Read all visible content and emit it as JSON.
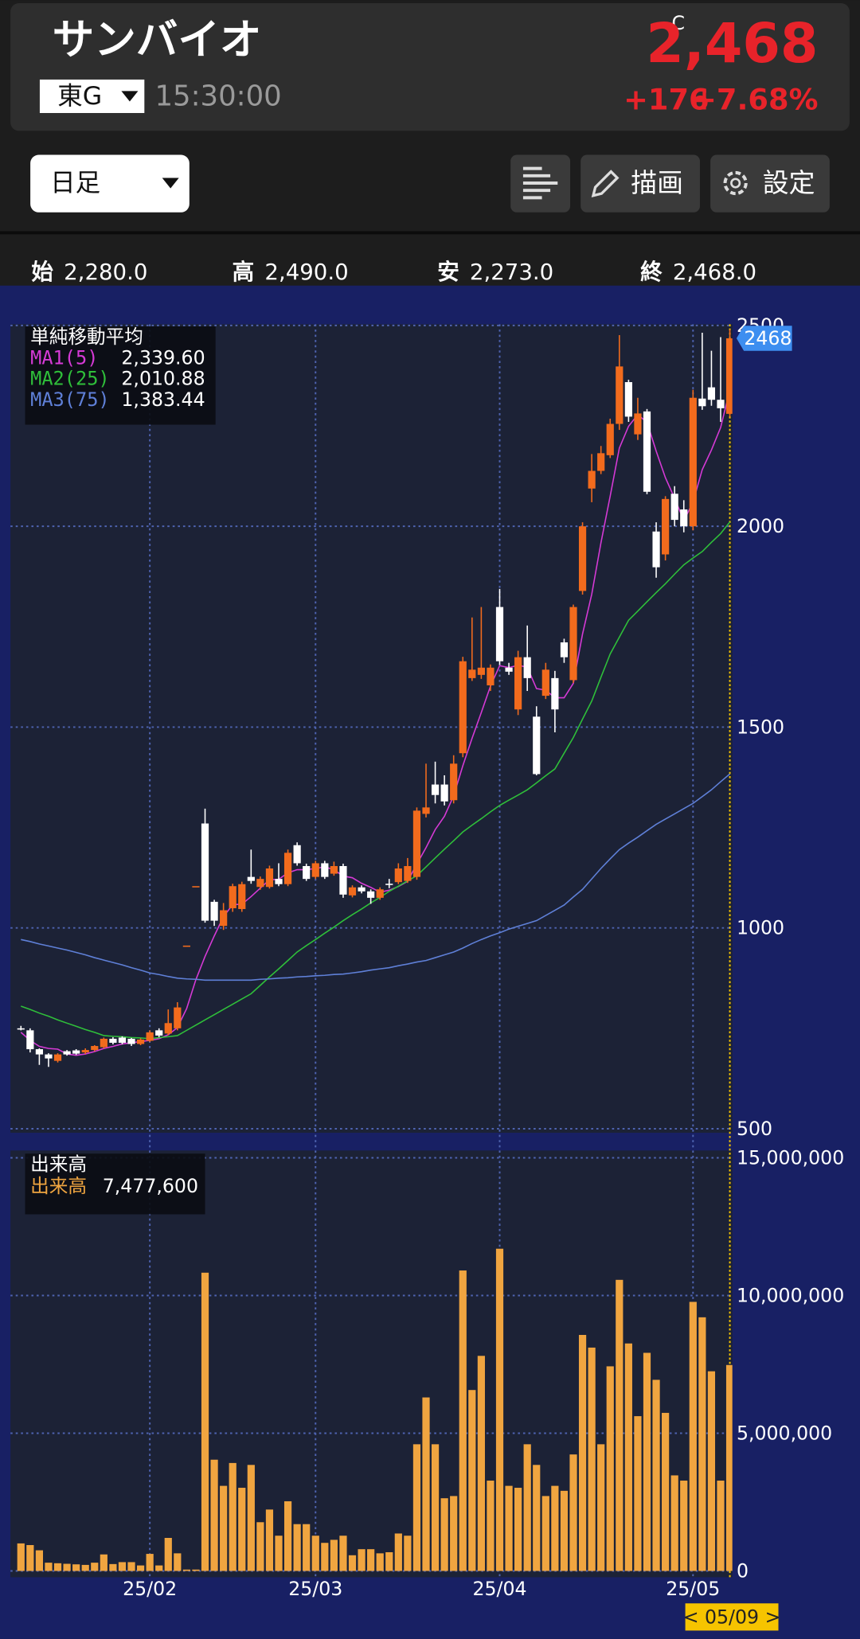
{
  "header": {
    "name": "サンバイオ",
    "market": "東G",
    "time": "15:30:00",
    "price_flag": "C",
    "price": "2,468",
    "change": "+176",
    "change_pct": "+7.68%"
  },
  "toolbar": {
    "period": "日足",
    "draw": "描画",
    "settings": "設定"
  },
  "ohlc": [
    {
      "label": "始",
      "value": "2,280.0"
    },
    {
      "label": "高",
      "value": "2,490.0"
    },
    {
      "label": "安",
      "value": "2,273.0"
    },
    {
      "label": "終",
      "value": "2,468.0"
    }
  ],
  "chart_data": [
    {
      "type": "candlestick",
      "legend_title": "単純移動平均",
      "price_tag": "2468",
      "up_color": "#f26b1d",
      "down_color": "#ffffff",
      "ylim": [
        490,
        2503
      ],
      "yticks": [
        500,
        1000,
        1500,
        2000,
        2500
      ],
      "grid": true,
      "open": [
        750,
        745,
        698,
        685,
        669,
        693,
        695,
        690,
        696,
        703,
        724,
        727,
        724,
        711,
        719,
        745,
        737,
        750,
        956,
        1104,
        1260,
        1065,
        1005,
        1049,
        1047,
        1127,
        1102,
        1102,
        1122,
        1109,
        1206,
        1154,
        1127,
        1161,
        1135,
        1154,
        1081,
        1101,
        1091,
        1075,
        1110,
        1114,
        1117,
        1127,
        1284,
        1357,
        1357,
        1318,
        1435,
        1622,
        1630,
        1604,
        1799,
        1648,
        1544,
        1674,
        1526,
        1578,
        1622,
        1711,
        1617,
        1839,
        2094,
        2138,
        2177,
        2255,
        2359,
        2229,
        2286,
        1987,
        1930,
        2081,
        2042,
        2000,
        2318,
        2346,
        2315,
        2280
      ],
      "high": [
        756,
        750,
        700,
        688,
        688,
        696,
        698,
        700,
        708,
        727,
        728,
        730,
        726,
        725,
        745,
        750,
        797,
        815,
        956,
        1104,
        1297,
        1070,
        1062,
        1110,
        1115,
        1195,
        1128,
        1155,
        1161,
        1195,
        1213,
        1160,
        1167,
        1167,
        1165,
        1160,
        1106,
        1106,
        1096,
        1101,
        1122,
        1161,
        1174,
        1300,
        1409,
        1414,
        1380,
        1430,
        1675,
        1773,
        1799,
        1656,
        1844,
        1660,
        1690,
        1753,
        1552,
        1660,
        1640,
        1720,
        1805,
        2010,
        2180,
        2200,
        2268,
        2476,
        2365,
        2320,
        2292,
        2010,
        2075,
        2100,
        2065,
        2340,
        2482,
        2437,
        2471,
        2490
      ],
      "low": [
        745,
        690,
        659,
        654,
        665,
        682,
        684,
        686,
        693,
        700,
        710,
        710,
        706,
        708,
        716,
        728,
        733,
        745,
        956,
        1104,
        1013,
        1005,
        995,
        1040,
        1040,
        1110,
        1095,
        1098,
        1104,
        1104,
        1155,
        1117,
        1122,
        1122,
        1130,
        1075,
        1076,
        1086,
        1060,
        1070,
        1099,
        1109,
        1112,
        1120,
        1275,
        1310,
        1305,
        1310,
        1425,
        1615,
        1620,
        1590,
        1655,
        1630,
        1530,
        1590,
        1380,
        1570,
        1487,
        1660,
        1610,
        1830,
        2060,
        2130,
        2170,
        2240,
        2260,
        2215,
        2080,
        1872,
        1915,
        2000,
        1985,
        1990,
        2290,
        2300,
        2260,
        2273
      ],
      "close": [
        748,
        698,
        685,
        675,
        685,
        685,
        687,
        696,
        706,
        724,
        714,
        714,
        711,
        722,
        740,
        732,
        763,
        802,
        956,
        1104,
        1018,
        1018,
        1044,
        1104,
        1109,
        1117,
        1122,
        1148,
        1109,
        1187,
        1161,
        1122,
        1161,
        1127,
        1154,
        1083,
        1101,
        1091,
        1075,
        1096,
        1107,
        1148,
        1154,
        1292,
        1300,
        1331,
        1315,
        1409,
        1664,
        1643,
        1648,
        1648,
        1664,
        1638,
        1674,
        1622,
        1383,
        1643,
        1544,
        1674,
        1799,
        2000,
        2138,
        2182,
        2255,
        2398,
        2273,
        2281,
        2086,
        1898,
        2068,
        2016,
        2000,
        2320,
        2299,
        2315,
        2294,
        2468
      ],
      "series": [
        {
          "name": "MA1(5)",
          "color": "#d63ad6",
          "legend_value": "2,339.60",
          "values": [
            740,
            720,
            705,
            700,
            698,
            686,
            683,
            686,
            692,
            700,
            705,
            711,
            714,
            717,
            720,
            724,
            734,
            752,
            799,
            871,
            929,
            980,
            1028,
            1058,
            1059,
            1078,
            1099,
            1120,
            1121,
            1137,
            1145,
            1145,
            1148,
            1152,
            1145,
            1129,
            1125,
            1111,
            1101,
            1089,
            1094,
            1103,
            1116,
            1159,
            1200,
            1245,
            1278,
            1329,
            1404,
            1472,
            1536,
            1602,
            1653,
            1648,
            1654,
            1649,
            1596,
            1592,
            1573,
            1573,
            1609,
            1732,
            1831,
            1959,
            2075,
            2195,
            2249,
            2278,
            2259,
            2187,
            2121,
            2070,
            2014,
            2060,
            2141,
            2190,
            2246,
            2339.6
          ]
        },
        {
          "name": "MA2(25)",
          "color": "#2fbf3a",
          "legend_value": "2,010.88",
          "values": [
            805,
            797,
            788,
            780,
            771,
            763,
            755,
            747,
            740,
            732,
            730,
            729,
            727,
            726,
            724,
            727,
            729,
            732,
            745,
            758,
            771,
            784,
            797,
            810,
            823,
            836,
            857,
            878,
            898,
            919,
            940,
            956,
            971,
            987,
            1002,
            1018,
            1033,
            1047,
            1062,
            1076,
            1091,
            1104,
            1117,
            1130,
            1152,
            1174,
            1196,
            1217,
            1239,
            1256,
            1272,
            1289,
            1305,
            1318,
            1331,
            1344,
            1361,
            1379,
            1396,
            1435,
            1474,
            1520,
            1565,
            1624,
            1682,
            1724,
            1766,
            1789,
            1812,
            1835,
            1857,
            1881,
            1904,
            1921,
            1937,
            1960,
            1982,
            2010.88
          ]
        },
        {
          "name": "MA3(75)",
          "color": "#5f80d8",
          "legend_value": "1,383.44",
          "values": [
            971,
            966,
            960,
            955,
            950,
            945,
            939,
            933,
            926,
            920,
            914,
            908,
            901,
            895,
            888,
            884,
            879,
            875,
            873,
            872,
            870,
            870,
            870,
            870,
            870,
            870,
            872,
            873,
            875,
            876,
            878,
            879,
            881,
            882,
            884,
            885,
            888,
            891,
            895,
            898,
            901,
            906,
            910,
            915,
            919,
            926,
            933,
            940,
            950,
            961,
            971,
            980,
            988,
            997,
            1004,
            1011,
            1018,
            1031,
            1044,
            1057,
            1077,
            1096,
            1122,
            1148,
            1172,
            1195,
            1211,
            1226,
            1242,
            1258,
            1271,
            1284,
            1297,
            1310,
            1327,
            1344,
            1364,
            1383.44
          ]
        }
      ]
    },
    {
      "type": "bar",
      "title": "出来高",
      "color": "#f0a540",
      "cursor_label": "< 05/09 >",
      "series_name": "出来高",
      "legend_value": "7,477,600",
      "ylim": [
        0,
        15000000
      ],
      "yticks": [
        0,
        {
          "value": 5000000,
          "label": "5,000,000"
        },
        {
          "value": 10000000,
          "label": "10,000,000"
        },
        {
          "value": 15000000,
          "label": "15,000,000"
        }
      ],
      "grid": true,
      "categories": [
        null,
        null,
        null,
        null,
        null,
        null,
        null,
        null,
        null,
        null,
        null,
        null,
        null,
        null,
        "25/02",
        null,
        null,
        null,
        null,
        null,
        null,
        null,
        null,
        null,
        null,
        null,
        null,
        null,
        null,
        null,
        null,
        null,
        "25/03",
        null,
        null,
        null,
        null,
        null,
        null,
        null,
        null,
        null,
        null,
        null,
        null,
        null,
        null,
        null,
        null,
        null,
        null,
        null,
        "25/04",
        null,
        null,
        null,
        null,
        null,
        null,
        null,
        null,
        null,
        null,
        null,
        null,
        null,
        null,
        null,
        null,
        null,
        null,
        null,
        null,
        "25/05",
        null,
        null,
        null,
        null
      ],
      "values": [
        1000000,
        940000,
        750000,
        300000,
        280000,
        260000,
        240000,
        220000,
        300000,
        600000,
        250000,
        320000,
        320000,
        200000,
        620000,
        200000,
        1200000,
        640000,
        50000,
        50000,
        10830000,
        4040000,
        3090000,
        3920000,
        3020000,
        3850000,
        1770000,
        2230000,
        1280000,
        2530000,
        1700000,
        1700000,
        1280000,
        1020000,
        1130000,
        1280000,
        570000,
        790000,
        790000,
        640000,
        680000,
        1360000,
        1280000,
        4600000,
        6300000,
        4600000,
        2640000,
        2720000,
        10910000,
        6570000,
        7810000,
        3280000,
        11700000,
        3090000,
        3020000,
        4600000,
        3850000,
        2720000,
        3090000,
        2910000,
        4230000,
        8570000,
        8110000,
        4600000,
        7430000,
        10570000,
        8260000,
        5620000,
        7920000,
        6940000,
        5740000,
        3470000,
        3280000,
        9770000,
        9210000,
        7250000,
        3280000,
        7477600
      ]
    }
  ]
}
